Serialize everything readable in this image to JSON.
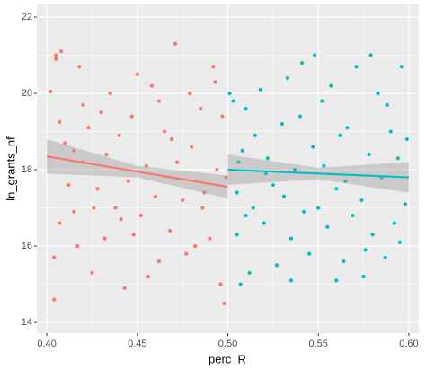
{
  "chart_data": {
    "type": "scatter",
    "x_label": "perc_R",
    "y_label": "ln_grants_nf",
    "xlim": [
      0.3945,
      0.6055
    ],
    "ylim": [
      13.72,
      22.33
    ],
    "xticks": [
      {
        "value": 0.4,
        "label": "0.40"
      },
      {
        "value": 0.45,
        "label": "0.45"
      },
      {
        "value": 0.5,
        "label": "0.50"
      },
      {
        "value": 0.55,
        "label": "0.55"
      },
      {
        "value": 0.6,
        "label": "0.60"
      }
    ],
    "yticks": [
      14,
      16,
      18,
      20,
      22
    ],
    "grid": true,
    "series": [
      {
        "color": "#F8766D",
        "x": [
          0.402,
          0.405,
          0.408,
          0.405,
          0.404,
          0.404,
          0.407,
          0.407,
          0.41,
          0.415,
          0.418,
          0.412,
          0.415,
          0.42,
          0.42,
          0.423,
          0.425,
          0.428,
          0.43,
          0.432,
          0.435,
          0.438,
          0.44,
          0.443,
          0.445,
          0.447,
          0.45,
          0.452,
          0.455,
          0.458,
          0.46,
          0.462,
          0.465,
          0.468,
          0.471,
          0.472,
          0.475,
          0.477,
          0.48,
          0.482,
          0.485,
          0.487,
          0.49,
          0.492,
          0.494,
          0.496,
          0.497,
          0.498,
          0.499,
          0.448,
          0.433,
          0.426,
          0.417,
          0.462,
          0.479,
          0.456,
          0.441,
          0.486,
          0.469,
          0.493
        ],
        "values": [
          20.05,
          21.0,
          21.1,
          20.9,
          14.6,
          15.7,
          16.6,
          19.25,
          18.7,
          18.5,
          20.7,
          17.6,
          16.9,
          19.7,
          18.2,
          19.1,
          15.3,
          17.5,
          19.5,
          16.2,
          20.0,
          17.0,
          18.9,
          14.9,
          17.7,
          19.4,
          20.5,
          16.8,
          18.1,
          20.2,
          17.3,
          15.6,
          19.0,
          16.4,
          21.3,
          18.2,
          17.2,
          15.8,
          18.6,
          16.0,
          19.6,
          17.4,
          16.2,
          20.7,
          18.0,
          15.0,
          19.4,
          14.5,
          17.8,
          16.3,
          18.4,
          17.0,
          16.0,
          19.8,
          20.0,
          15.2,
          16.7,
          17.0,
          18.8,
          20.3
        ]
      },
      {
        "color": "#00BFC4",
        "x": [
          0.501,
          0.503,
          0.505,
          0.505,
          0.507,
          0.508,
          0.51,
          0.512,
          0.514,
          0.515,
          0.518,
          0.52,
          0.522,
          0.525,
          0.527,
          0.53,
          0.533,
          0.535,
          0.537,
          0.54,
          0.542,
          0.545,
          0.547,
          0.55,
          0.552,
          0.555,
          0.557,
          0.56,
          0.562,
          0.564,
          0.566,
          0.569,
          0.571,
          0.574,
          0.576,
          0.578,
          0.58,
          0.583,
          0.585,
          0.587,
          0.59,
          0.592,
          0.594,
          0.596,
          0.598,
          0.599,
          0.548,
          0.531,
          0.56,
          0.575,
          0.51,
          0.541,
          0.588,
          0.521,
          0.565,
          0.579,
          0.535,
          0.553,
          0.595,
          0.506
        ],
        "values": [
          20.0,
          19.8,
          17.4,
          16.3,
          15.0,
          18.5,
          19.6,
          15.3,
          17.0,
          18.9,
          20.1,
          16.6,
          18.3,
          17.6,
          15.5,
          19.2,
          20.4,
          16.2,
          18.0,
          19.4,
          16.9,
          15.8,
          18.6,
          17.0,
          19.8,
          16.5,
          20.2,
          17.5,
          18.9,
          15.6,
          19.1,
          16.8,
          20.7,
          17.2,
          15.9,
          18.4,
          16.3,
          20.0,
          17.8,
          15.7,
          19.0,
          16.6,
          18.3,
          20.7,
          17.1,
          18.8,
          21.0,
          17.3,
          15.1,
          15.2,
          16.8,
          20.8,
          19.7,
          17.9,
          17.7,
          21.0,
          15.1,
          18.1,
          16.1,
          18.2
        ]
      }
    ],
    "fits": [
      {
        "color": "#F8766D",
        "x": [
          0.4,
          0.45,
          0.5
        ],
        "values": [
          18.35,
          17.95,
          17.55
        ],
        "lower": [
          17.9,
          17.8,
          17.25
        ],
        "upper": [
          18.8,
          18.1,
          17.85
        ]
      },
      {
        "color": "#00BFC4",
        "x": [
          0.5,
          0.55,
          0.6
        ],
        "values": [
          18.0,
          17.9,
          17.8
        ],
        "lower": [
          17.6,
          17.75,
          17.4
        ],
        "upper": [
          18.4,
          18.05,
          18.2
        ]
      }
    ]
  }
}
